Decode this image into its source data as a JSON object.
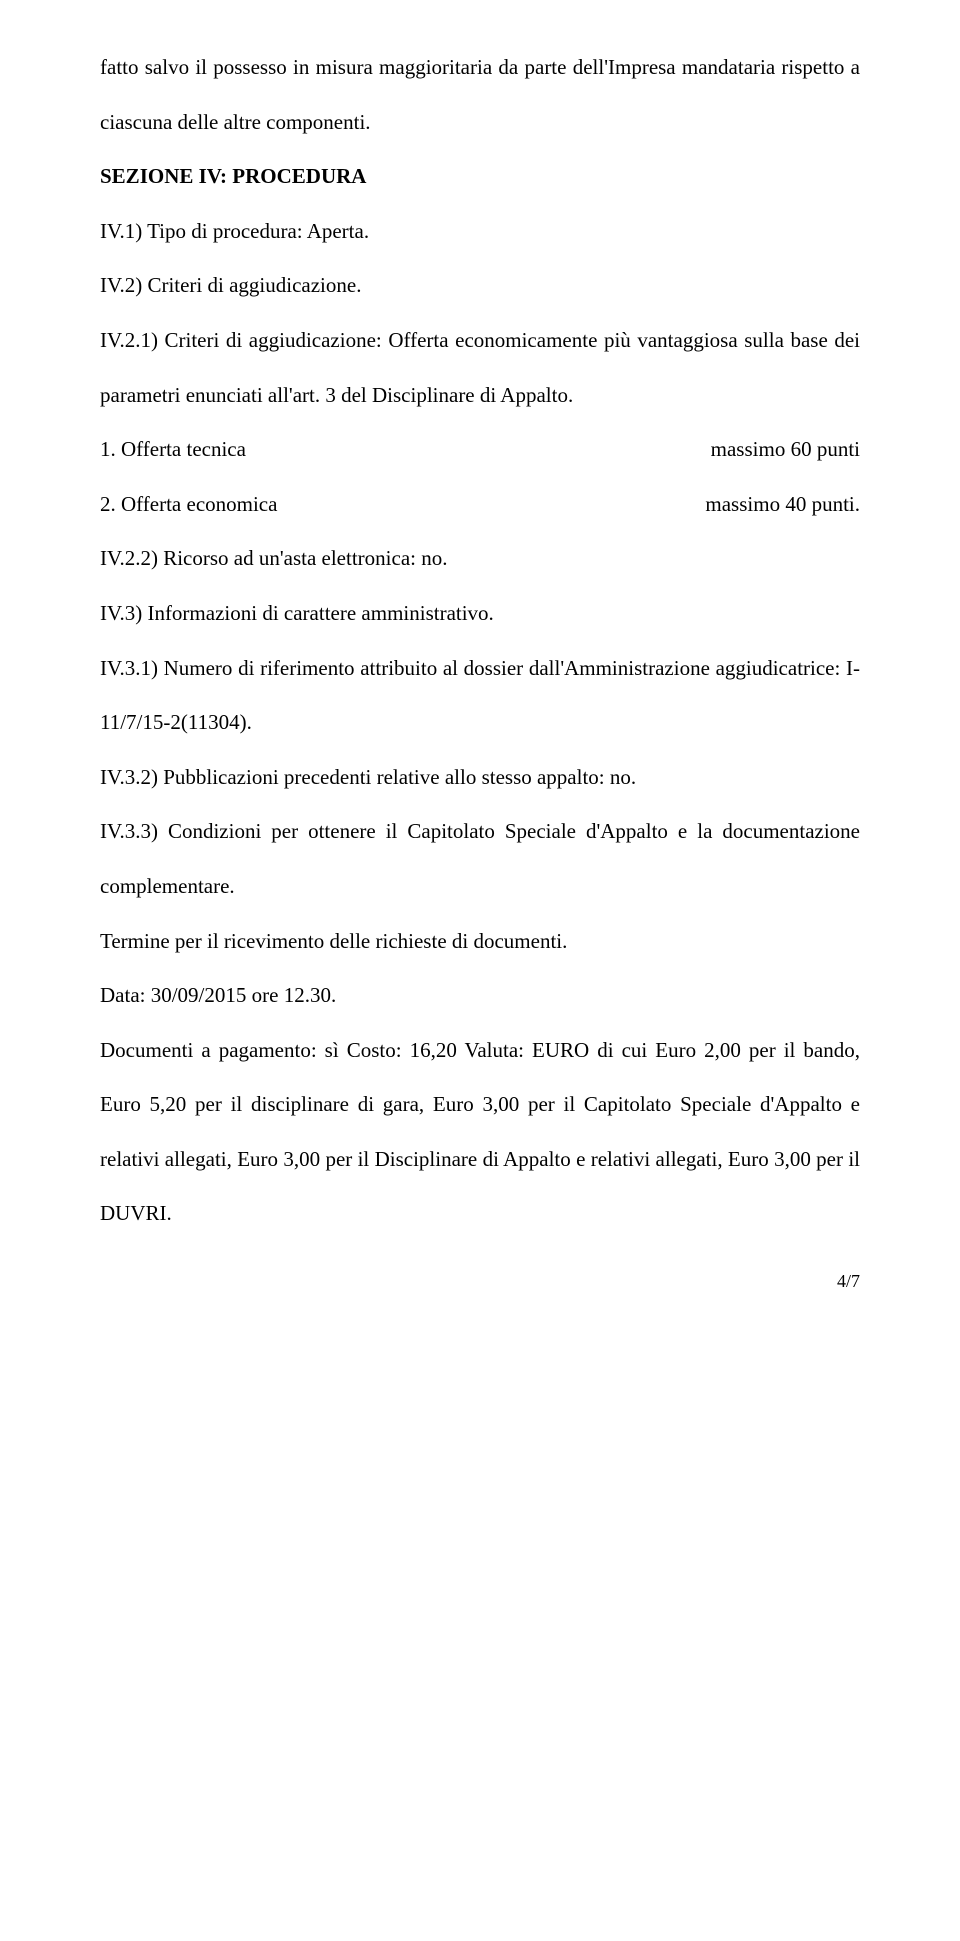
{
  "p1": "fatto salvo il possesso in misura maggioritaria da parte dell'Impresa mandataria rispetto a ciascuna delle altre componenti.",
  "sezione": "SEZIONE IV: PROCEDURA",
  "p2": "IV.1) Tipo di procedura: Aperta.",
  "p3": "IV.2) Criteri di aggiudicazione.",
  "p4": "IV.2.1) Criteri di aggiudicazione: Offerta economicamente più vantaggiosa sulla base dei parametri enunciati all'art. 3 del Disciplinare di Appalto.",
  "points1_label": "1. Offerta tecnica",
  "points1_value": "massimo 60 punti",
  "points2_label": "2. Offerta economica",
  "points2_value": "massimo 40 punti.",
  "p5": "IV.2.2) Ricorso ad un'asta elettronica: no.",
  "p6": "IV.3) Informazioni di carattere amministrativo.",
  "p7": "IV.3.1) Numero di riferimento attribuito al dossier dall'Amministrazione aggiudicatrice: I-11/7/15-2(11304).",
  "p8": "IV.3.2) Pubblicazioni precedenti relative allo stesso appalto: no.",
  "p9": "IV.3.3) Condizioni per ottenere il Capitolato Speciale d'Appalto e la documentazione complementare.",
  "p10": "Termine per il ricevimento delle richieste di documenti.",
  "p11": "Data: 30/09/2015 ore 12.30.",
  "p12": "Documenti a pagamento: sì Costo: 16,20 Valuta: EURO di cui Euro 2,00 per il bando, Euro 5,20 per il disciplinare di gara, Euro 3,00 per il Capitolato Speciale d'Appalto e relativi allegati, Euro 3,00 per il Disciplinare di Appalto e relativi allegati, Euro 3,00 per il DUVRI.",
  "pagenum": "4/7"
}
